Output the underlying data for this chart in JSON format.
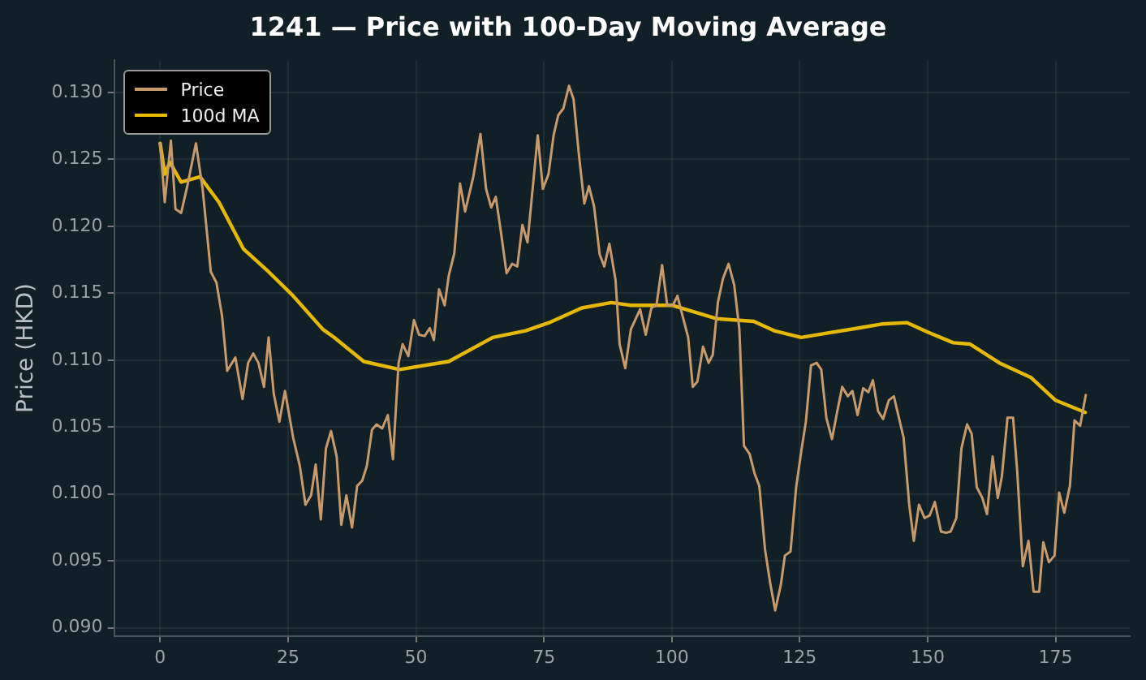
{
  "chart_data": {
    "type": "line",
    "title": "1241 — Price with 100-Day Moving Average",
    "ylabel": "Price (HKD)",
    "xlim": [
      -9,
      189.5
    ],
    "xticks": [
      0,
      25,
      50,
      75,
      100,
      125,
      150,
      175
    ],
    "ylim": [
      0.0894,
      0.1324
    ],
    "yticks": [
      {
        "value": 0.09,
        "label": "0.090"
      },
      {
        "value": 0.095,
        "label": "0.095"
      },
      {
        "value": 0.1,
        "label": "0.100"
      },
      {
        "value": 0.105,
        "label": "0.105"
      },
      {
        "value": 0.11,
        "label": "0.110"
      },
      {
        "value": 0.115,
        "label": "0.115"
      },
      {
        "value": 0.12,
        "label": "0.120"
      },
      {
        "value": 0.125,
        "label": "0.125"
      },
      {
        "value": 0.13,
        "label": "0.130"
      }
    ],
    "grid": true,
    "legend": "top left",
    "marker": "none",
    "line_style": "solid",
    "series": [
      {
        "name": "Price",
        "color": "#c8996b",
        "x": [
          0,
          0.9,
          2.1,
          3,
          4.1,
          5.3,
          7,
          8.3,
          9.9,
          11,
          12.1,
          13.1,
          14.7,
          16.1,
          17.2,
          18.2,
          19.2,
          20.3,
          21.2,
          22.2,
          23.3,
          24.4,
          26,
          27.3,
          28.4,
          29.5,
          30.4,
          31.4,
          32.4,
          33.4,
          34.5,
          35.4,
          36.4,
          37.5,
          38.5,
          39.5,
          40.4,
          41.4,
          42.3,
          43.4,
          44.5,
          45.5,
          46.6,
          47.4,
          48.5,
          49.6,
          50.6,
          51.7,
          52.7,
          53.5,
          54.5,
          55.6,
          56.4,
          57.5,
          58.6,
          59.6,
          61.2,
          62.6,
          63.7,
          64.7,
          65.6,
          66.7,
          67.7,
          68.8,
          69.8,
          70.8,
          71.8,
          73.8,
          74.8,
          75.9,
          76.9,
          77.8,
          78.8,
          79.9,
          80.8,
          81.8,
          82.9,
          83.8,
          84.8,
          85.9,
          86.8,
          87.8,
          89,
          89.8,
          90.9,
          92,
          93.8,
          94.9,
          96,
          97,
          98.1,
          99.1,
          100.2,
          101.1,
          102.1,
          103.2,
          104.1,
          105,
          106.1,
          107.2,
          108,
          109,
          110,
          111.1,
          112.2,
          113.2,
          114.1,
          115.2,
          116.2,
          117.1,
          118.2,
          119.2,
          120.2,
          121.3,
          122.1,
          123.2,
          124.3,
          125.3,
          126.2,
          127.2,
          128.3,
          129.2,
          130.2,
          131.3,
          132.4,
          133.3,
          134.4,
          135.3,
          136.3,
          137.4,
          138.4,
          139.3,
          140.3,
          141.3,
          142.4,
          143.4,
          145.3,
          146.4,
          147.3,
          148.3,
          149.4,
          150.4,
          151.4,
          152.6,
          153.6,
          154.5,
          155.6,
          156.6,
          157.7,
          158.6,
          159.6,
          160.7,
          161.6,
          162.7,
          163.7,
          164.5,
          165.6,
          166.7,
          167.5,
          168.6,
          169.7,
          170.7,
          171.8,
          172.6,
          173.7,
          174.8,
          175.7,
          176.7,
          177.8,
          178.7,
          179.8,
          180.9
        ],
        "values": [
          0.1262,
          0.1218,
          0.1264,
          0.1213,
          0.121,
          0.123,
          0.1262,
          0.1228,
          0.1166,
          0.1158,
          0.1133,
          0.1092,
          0.1102,
          0.1071,
          0.1098,
          0.1105,
          0.1098,
          0.108,
          0.1117,
          0.1075,
          0.1054,
          0.1077,
          0.1042,
          0.1021,
          0.0992,
          0.0999,
          0.1022,
          0.0981,
          0.1034,
          0.1047,
          0.1028,
          0.0977,
          0.0999,
          0.0975,
          0.1006,
          0.101,
          0.1021,
          0.1048,
          0.1052,
          0.1049,
          0.1059,
          0.1026,
          0.1098,
          0.1112,
          0.1103,
          0.113,
          0.1119,
          0.1118,
          0.1124,
          0.1115,
          0.1153,
          0.1141,
          0.1163,
          0.118,
          0.1232,
          0.1211,
          0.1237,
          0.1269,
          0.1228,
          0.1214,
          0.1222,
          0.1193,
          0.1165,
          0.1172,
          0.117,
          0.1201,
          0.1188,
          0.1268,
          0.1228,
          0.1239,
          0.1268,
          0.1283,
          0.1288,
          0.1305,
          0.1295,
          0.1255,
          0.1217,
          0.123,
          0.1215,
          0.1179,
          0.117,
          0.1187,
          0.116,
          0.1112,
          0.1094,
          0.1123,
          0.1138,
          0.1119,
          0.1139,
          0.1141,
          0.1171,
          0.1141,
          0.1141,
          0.1148,
          0.1133,
          0.1117,
          0.108,
          0.1084,
          0.111,
          0.1098,
          0.1104,
          0.1143,
          0.1161,
          0.1172,
          0.1156,
          0.1123,
          0.1036,
          0.103,
          0.1015,
          0.1006,
          0.0959,
          0.0934,
          0.0913,
          0.0932,
          0.0954,
          0.0957,
          0.1005,
          0.1032,
          0.1054,
          0.1096,
          0.1098,
          0.1093,
          0.1057,
          0.1041,
          0.1063,
          0.108,
          0.1073,
          0.1077,
          0.1059,
          0.1079,
          0.1076,
          0.1085,
          0.1062,
          0.1056,
          0.107,
          0.1073,
          0.1042,
          0.0992,
          0.0965,
          0.0992,
          0.0982,
          0.0984,
          0.0994,
          0.0972,
          0.0971,
          0.0972,
          0.0982,
          0.1034,
          0.1052,
          0.1045,
          0.1005,
          0.0997,
          0.0985,
          0.1028,
          0.0997,
          0.1013,
          0.1057,
          0.1057,
          0.1017,
          0.0946,
          0.0965,
          0.0927,
          0.0927,
          0.0964,
          0.0949,
          0.0954,
          0.1001,
          0.0986,
          0.1006,
          0.1055,
          0.1051,
          0.1074
        ]
      },
      {
        "name": "100d MA",
        "color": "#e6b800",
        "x": [
          0,
          0.9,
          1.9,
          4.1,
          7.8,
          11.5,
          16.3,
          21.2,
          26,
          31.8,
          34,
          37.2,
          39.8,
          46.8,
          56.4,
          65,
          71.4,
          76,
          82.4,
          88.2,
          92,
          100,
          108.7,
          116,
          120,
          125.3,
          130,
          136.5,
          141,
          146,
          150,
          155,
          158.3,
          164,
          170.2,
          175,
          180.8
        ],
        "values": [
          0.1262,
          0.1239,
          0.1248,
          0.1233,
          0.1237,
          0.1218,
          0.1183,
          0.1166,
          0.1148,
          0.1123,
          0.1117,
          0.1107,
          0.1099,
          0.1093,
          0.1099,
          0.1117,
          0.1122,
          0.1128,
          0.1139,
          0.1143,
          0.1141,
          0.1141,
          0.1131,
          0.1129,
          0.1122,
          0.1117,
          0.112,
          0.1124,
          0.1127,
          0.1128,
          0.1121,
          0.1113,
          0.1112,
          0.1098,
          0.1087,
          0.107,
          0.1061
        ]
      }
    ]
  }
}
